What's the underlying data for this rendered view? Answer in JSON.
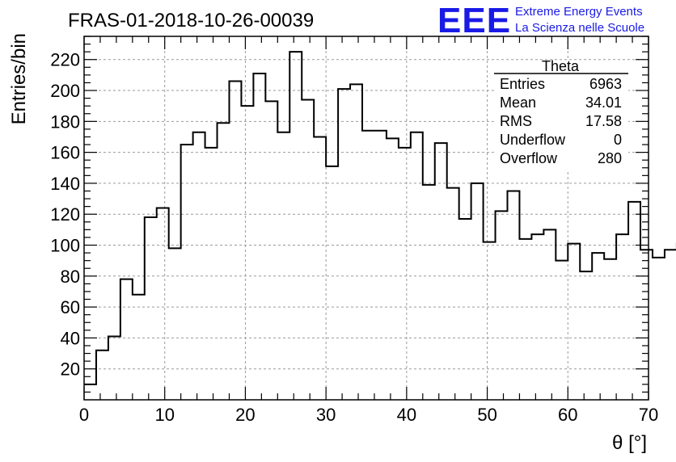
{
  "title": "FRAS-01-2018-10-26-00039",
  "logo": {
    "mark": "EEE",
    "line1": "Extreme Energy Events",
    "line2": "La Scienza nelle Scuole",
    "color": "#1a1ae6"
  },
  "stats": {
    "name": "Theta",
    "rows": [
      {
        "label": "Entries",
        "value": "6963"
      },
      {
        "label": "Mean",
        "value": "34.01"
      },
      {
        "label": "RMS",
        "value": "17.58"
      },
      {
        "label": "Underflow",
        "value": "0"
      },
      {
        "label": "Overflow",
        "value": "280"
      }
    ]
  },
  "chart_data": {
    "type": "histogram",
    "xlabel": "θ [°]",
    "ylabel": "Entries/bin",
    "xlim": [
      0,
      70
    ],
    "ylim": [
      0,
      235
    ],
    "x_ticks": [
      0,
      10,
      20,
      30,
      40,
      50,
      60,
      70
    ],
    "y_ticks": [
      20,
      40,
      60,
      80,
      100,
      120,
      140,
      160,
      180,
      200,
      220
    ],
    "grid": true,
    "bin_width": 1.5,
    "bin_edges_start": 0,
    "values": [
      10,
      32,
      41,
      78,
      68,
      118,
      124,
      98,
      165,
      173,
      163,
      179,
      206,
      190,
      211,
      193,
      173,
      225,
      194,
      170,
      151,
      201,
      204,
      174,
      174,
      169,
      163,
      173,
      139,
      166,
      137,
      117,
      140,
      102,
      122,
      135,
      104,
      107,
      110,
      90,
      101,
      83,
      95,
      91,
      107,
      128,
      97,
      92,
      97,
      101
    ],
    "line_color": "#000000"
  }
}
